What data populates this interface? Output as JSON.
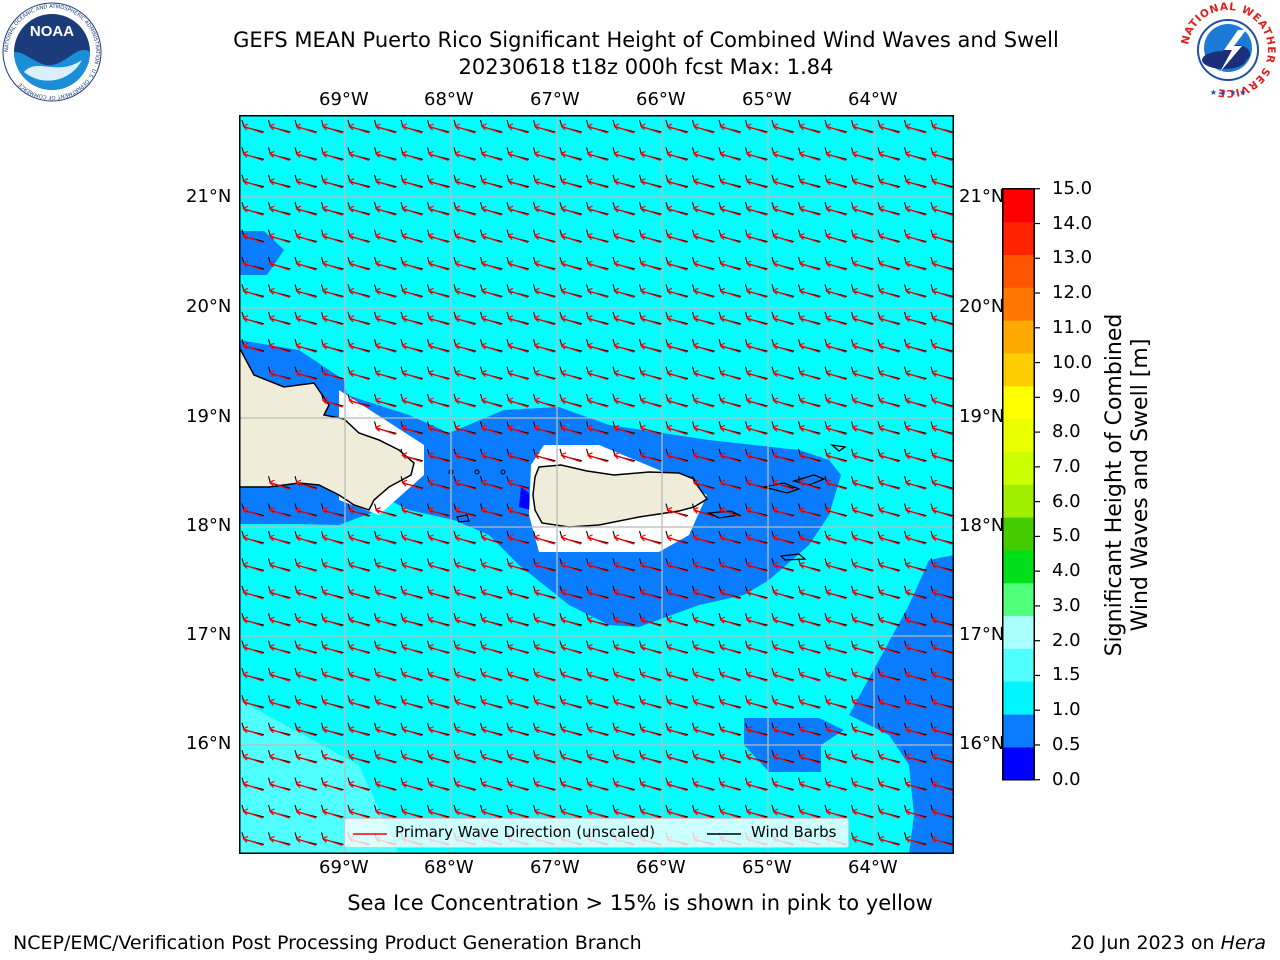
{
  "header": {
    "title_line1": "GEFS MEAN Puerto Rico Significant Height of Combined Wind Waves and Swell",
    "title_line2": "20230618 t18z 000h fcst   Max: 1.84"
  },
  "logos": {
    "noaa_text": "NOAA",
    "noaa_ring_text": "NATIONAL OCEANIC AND ATMOSPHERIC ADMINISTRATION · U.S. DEPARTMENT OF COMMERCE",
    "nws_ring_text": "NATIONAL WEATHER SERVICE"
  },
  "map": {
    "lon_labels": [
      "69°W",
      "68°W",
      "67°W",
      "66°W",
      "65°W",
      "64°W"
    ],
    "lat_labels": [
      "21°N",
      "20°N",
      "19°N",
      "18°N",
      "17°N",
      "16°N"
    ],
    "legend": {
      "wave_label": "Primary Wave Direction (unscaled)",
      "barb_label": "Wind Barbs"
    },
    "extent": {
      "lon_min": -70.0,
      "lon_max": -63.25,
      "lat_min": 15.0,
      "lat_max": 21.75
    },
    "region": "Puerto Rico"
  },
  "colorbar": {
    "label": "Significant Height of Combined Wind Waves and Swell [m]",
    "label_line1": "Significant Height of Combined",
    "label_line2": "Wind Waves and Swell [m]",
    "ticks": [
      "15.0",
      "14.0",
      "13.0",
      "12.0",
      "11.0",
      "10.0",
      "9.0",
      "8.0",
      "7.0",
      "6.0",
      "5.0",
      "4.0",
      "3.0",
      "2.0",
      "1.5",
      "1.0",
      "0.5",
      "0.0"
    ],
    "bins": [
      {
        "range": "0.0-0.5",
        "color": "#0000ff"
      },
      {
        "range": "0.5-1.0",
        "color": "#0a7cff"
      },
      {
        "range": "1.0-1.5",
        "color": "#00f5ff"
      },
      {
        "range": "1.5-2.0",
        "color": "#50ffff"
      },
      {
        "range": "2.0-3.0",
        "color": "#aaffff"
      },
      {
        "range": "3.0-4.0",
        "color": "#50ff7a"
      },
      {
        "range": "4.0-5.0",
        "color": "#00e01a"
      },
      {
        "range": "5.0-6.0",
        "color": "#44cc00"
      },
      {
        "range": "6.0-7.0",
        "color": "#a0ee00"
      },
      {
        "range": "7.0-8.0",
        "color": "#ccff00"
      },
      {
        "range": "8.0-9.0",
        "color": "#eaff00"
      },
      {
        "range": "9.0-10.0",
        "color": "#ffff00"
      },
      {
        "range": "10.0-11.0",
        "color": "#ffcc00"
      },
      {
        "range": "11.0-12.0",
        "color": "#ffaa00"
      },
      {
        "range": "12.0-13.0",
        "color": "#ff7700"
      },
      {
        "range": "13.0-14.0",
        "color": "#ff5500"
      },
      {
        "range": "14.0-15.0",
        "color": "#ff2200"
      },
      {
        "range": ">15.0",
        "color": "#ff0000"
      }
    ]
  },
  "colors": {
    "sea_main": "#00ffff",
    "sea_band": "#0a7cff",
    "sea_dark": "#0000ff",
    "land": "#efedd9",
    "wave_arrow": "#ff0000",
    "barb": "#000000",
    "grid": "#bbbbbb"
  },
  "notes": {
    "sea_ice": "Sea Ice Concentration > 15% is shown in pink to yellow"
  },
  "footer": {
    "left": "NCEP/EMC/Verification Post Processing Product Generation Branch",
    "right_prefix": "20 Jun 2023 on ",
    "right_host": "Hera"
  }
}
